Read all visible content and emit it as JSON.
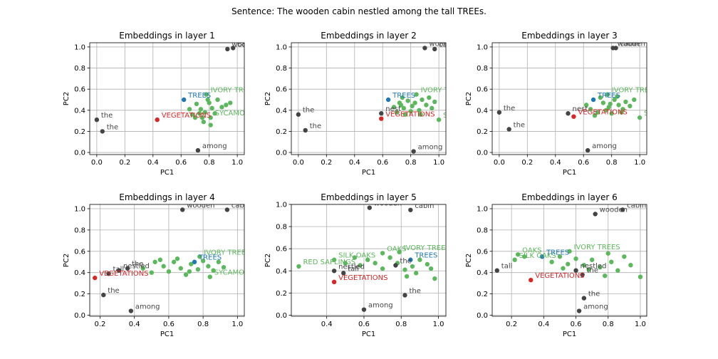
{
  "figure": {
    "suptitle": "Sentence: The wooden cabin nestled among the tall TREEs."
  },
  "colors": {
    "context": "#444444",
    "target": "#1f77b4",
    "hypernym": "#d62728",
    "other": "#5cb85c"
  },
  "chart_data": [
    {
      "type": "scatter",
      "title": "Embeddings in layer 1",
      "xlabel": "PC1",
      "ylabel": "PC2",
      "xlim": [
        -0.05,
        1.05
      ],
      "ylim": [
        -0.02,
        1.04
      ],
      "xticks": [
        "0.0",
        "0.2",
        "0.4",
        "0.6",
        "0.8",
        "1.0"
      ],
      "yticks": [
        "0.0",
        "0.2",
        "0.4",
        "0.6",
        "0.8",
        "1.0"
      ],
      "grid": true,
      "context_points": [
        {
          "label": "wooden",
          "x": 0.93,
          "y": 0.98
        },
        {
          "label": "cabin",
          "x": 0.97,
          "y": 0.99
        },
        {
          "label": "the",
          "x": 0.0,
          "y": 0.31
        },
        {
          "label": "the",
          "x": 0.04,
          "y": 0.2
        },
        {
          "label": "among",
          "x": 0.72,
          "y": 0.02
        }
      ],
      "target_points": [
        {
          "label": "TREES",
          "x": 0.62,
          "y": 0.5
        }
      ],
      "hypernym_points": [
        {
          "label": "VEGETATIONS",
          "x": 0.43,
          "y": 0.31
        }
      ],
      "other_points": [
        {
          "label": "IVORY TREES",
          "x": 0.78,
          "y": 0.55
        },
        {
          "label": "SYCAMORES",
          "x": 0.81,
          "y": 0.33
        },
        {
          "label": "",
          "x": 0.71,
          "y": 0.46
        },
        {
          "label": "",
          "x": 0.74,
          "y": 0.41
        },
        {
          "label": "",
          "x": 0.75,
          "y": 0.33
        },
        {
          "label": "",
          "x": 0.8,
          "y": 0.47
        },
        {
          "label": "",
          "x": 0.82,
          "y": 0.42
        },
        {
          "label": "",
          "x": 0.68,
          "y": 0.36
        },
        {
          "label": "",
          "x": 0.86,
          "y": 0.5
        },
        {
          "label": "",
          "x": 0.89,
          "y": 0.43
        },
        {
          "label": "",
          "x": 0.77,
          "y": 0.38
        },
        {
          "label": "",
          "x": 0.7,
          "y": 0.33
        },
        {
          "label": "",
          "x": 0.81,
          "y": 0.26
        },
        {
          "label": "",
          "x": 0.92,
          "y": 0.45
        },
        {
          "label": "",
          "x": 0.66,
          "y": 0.41
        },
        {
          "label": "",
          "x": 0.73,
          "y": 0.37
        },
        {
          "label": "",
          "x": 0.84,
          "y": 0.37
        },
        {
          "label": "",
          "x": 0.95,
          "y": 0.47
        },
        {
          "label": "",
          "x": 0.79,
          "y": 0.5
        },
        {
          "label": "",
          "x": 0.76,
          "y": 0.29
        }
      ]
    },
    {
      "type": "scatter",
      "title": "Embeddings in layer 2",
      "xlabel": "PC1",
      "ylabel": "PC2",
      "xlim": [
        -0.05,
        1.05
      ],
      "ylim": [
        -0.02,
        1.04
      ],
      "xticks": [
        "0.0",
        "0.2",
        "0.4",
        "0.6",
        "0.8",
        "1.0"
      ],
      "yticks": [
        "0.0",
        "0.2",
        "0.4",
        "0.6",
        "0.8",
        "1.0"
      ],
      "grid": true,
      "context_points": [
        {
          "label": "wooden",
          "x": 0.9,
          "y": 0.99
        },
        {
          "label": "cabin",
          "x": 0.97,
          "y": 0.98
        },
        {
          "label": "the",
          "x": 0.0,
          "y": 0.36
        },
        {
          "label": "the",
          "x": 0.05,
          "y": 0.21
        },
        {
          "label": "nest",
          "x": 0.59,
          "y": 0.37
        },
        {
          "label": "among",
          "x": 0.82,
          "y": 0.01
        }
      ],
      "target_points": [
        {
          "label": "TREES",
          "x": 0.64,
          "y": 0.5
        }
      ],
      "hypernym_points": [
        {
          "label": "VEGETATIONS",
          "x": 0.59,
          "y": 0.32
        }
      ],
      "other_points": [
        {
          "label": "IVORY TREES",
          "x": 0.84,
          "y": 0.55
        },
        {
          "label": "SYCAMORES",
          "x": 1.0,
          "y": 0.31
        },
        {
          "label": "",
          "x": 0.72,
          "y": 0.47
        },
        {
          "label": "",
          "x": 0.75,
          "y": 0.42
        },
        {
          "label": "",
          "x": 0.7,
          "y": 0.38
        },
        {
          "label": "",
          "x": 0.78,
          "y": 0.49
        },
        {
          "label": "",
          "x": 0.81,
          "y": 0.44
        },
        {
          "label": "",
          "x": 0.86,
          "y": 0.4
        },
        {
          "label": "",
          "x": 0.88,
          "y": 0.5
        },
        {
          "label": "",
          "x": 0.91,
          "y": 0.45
        },
        {
          "label": "",
          "x": 0.76,
          "y": 0.36
        },
        {
          "label": "",
          "x": 0.93,
          "y": 0.52
        },
        {
          "label": "",
          "x": 0.68,
          "y": 0.43
        },
        {
          "label": "",
          "x": 0.83,
          "y": 0.47
        },
        {
          "label": "",
          "x": 0.95,
          "y": 0.42
        },
        {
          "label": "",
          "x": 0.8,
          "y": 0.39
        },
        {
          "label": "",
          "x": 0.74,
          "y": 0.52
        },
        {
          "label": "",
          "x": 0.87,
          "y": 0.36
        },
        {
          "label": "",
          "x": 0.97,
          "y": 0.48
        },
        {
          "label": "",
          "x": 0.73,
          "y": 0.45
        }
      ]
    },
    {
      "type": "scatter",
      "title": "Embeddings in layer 3",
      "xlabel": "PC1",
      "ylabel": "PC2",
      "xlim": [
        -0.05,
        1.05
      ],
      "ylim": [
        -0.02,
        1.04
      ],
      "xticks": [
        "0.0",
        "0.2",
        "0.4",
        "0.6",
        "0.8",
        "1.0"
      ],
      "yticks": [
        "0.0",
        "0.2",
        "0.4",
        "0.6",
        "0.8",
        "1.0"
      ],
      "grid": true,
      "context_points": [
        {
          "label": "wooden",
          "x": 0.81,
          "y": 0.99
        },
        {
          "label": "cabin",
          "x": 0.83,
          "y": 0.99
        },
        {
          "label": "the",
          "x": 0.0,
          "y": 0.38
        },
        {
          "label": "the",
          "x": 0.07,
          "y": 0.22
        },
        {
          "label": "nest",
          "x": 0.49,
          "y": 0.37
        },
        {
          "label": "among",
          "x": 0.63,
          "y": 0.02
        }
      ],
      "target_points": [
        {
          "label": "TREES",
          "x": 0.67,
          "y": 0.5
        }
      ],
      "hypernym_points": [
        {
          "label": "VEGETATIONS",
          "x": 0.53,
          "y": 0.34
        }
      ],
      "other_points": [
        {
          "label": "IVORY TREES",
          "x": 0.77,
          "y": 0.55
        },
        {
          "label": "SYCAMORES",
          "x": 1.0,
          "y": 0.33
        },
        {
          "label": "",
          "x": 0.62,
          "y": 0.45
        },
        {
          "label": "",
          "x": 0.65,
          "y": 0.41
        },
        {
          "label": "",
          "x": 0.7,
          "y": 0.38
        },
        {
          "label": "",
          "x": 0.74,
          "y": 0.47
        },
        {
          "label": "",
          "x": 0.78,
          "y": 0.43
        },
        {
          "label": "",
          "x": 0.82,
          "y": 0.5
        },
        {
          "label": "",
          "x": 0.85,
          "y": 0.45
        },
        {
          "label": "",
          "x": 0.8,
          "y": 0.37
        },
        {
          "label": "",
          "x": 0.88,
          "y": 0.41
        },
        {
          "label": "",
          "x": 0.72,
          "y": 0.52
        },
        {
          "label": "",
          "x": 0.9,
          "y": 0.48
        },
        {
          "label": "",
          "x": 0.68,
          "y": 0.35
        },
        {
          "label": "",
          "x": 0.76,
          "y": 0.4
        },
        {
          "label": "",
          "x": 0.93,
          "y": 0.44
        },
        {
          "label": "",
          "x": 0.84,
          "y": 0.53
        },
        {
          "label": "",
          "x": 0.96,
          "y": 0.5
        },
        {
          "label": "",
          "x": 0.79,
          "y": 0.46
        },
        {
          "label": "",
          "x": 0.87,
          "y": 0.38
        }
      ]
    },
    {
      "type": "scatter",
      "title": "Embeddings in layer 4",
      "xlabel": "PC1",
      "ylabel": "PC2",
      "xlim": [
        0.14,
        1.04
      ],
      "ylim": [
        -0.01,
        1.04
      ],
      "xticks": [
        "0.2",
        "0.4",
        "0.6",
        "0.8",
        "1.0"
      ],
      "yticks": [
        "0.0",
        "0.2",
        "0.4",
        "0.6",
        "0.8",
        "1.0"
      ],
      "grid": true,
      "context_points": [
        {
          "label": "wooden",
          "x": 0.68,
          "y": 0.99
        },
        {
          "label": "cabin",
          "x": 0.94,
          "y": 0.99
        },
        {
          "label": "the",
          "x": 0.36,
          "y": 0.44
        },
        {
          "label": "tall",
          "x": 0.25,
          "y": 0.39
        },
        {
          "label": "nestled",
          "x": 0.31,
          "y": 0.42
        },
        {
          "label": "the",
          "x": 0.22,
          "y": 0.19
        },
        {
          "label": "among",
          "x": 0.38,
          "y": 0.04
        }
      ],
      "target_points": [
        {
          "label": "TREES",
          "x": 0.75,
          "y": 0.5
        }
      ],
      "hypernym_points": [
        {
          "label": "VEGETATIONS",
          "x": 0.17,
          "y": 0.35
        }
      ],
      "other_points": [
        {
          "label": "IVORY TREES",
          "x": 0.78,
          "y": 0.55
        },
        {
          "label": "SYCAMORES",
          "x": 0.84,
          "y": 0.36
        },
        {
          "label": "",
          "x": 0.45,
          "y": 0.44
        },
        {
          "label": "",
          "x": 0.5,
          "y": 0.4
        },
        {
          "label": "",
          "x": 0.52,
          "y": 0.5
        },
        {
          "label": "",
          "x": 0.57,
          "y": 0.46
        },
        {
          "label": "",
          "x": 0.6,
          "y": 0.41
        },
        {
          "label": "",
          "x": 0.63,
          "y": 0.5
        },
        {
          "label": "",
          "x": 0.67,
          "y": 0.44
        },
        {
          "label": "",
          "x": 0.7,
          "y": 0.38
        },
        {
          "label": "",
          "x": 0.73,
          "y": 0.48
        },
        {
          "label": "",
          "x": 0.77,
          "y": 0.43
        },
        {
          "label": "",
          "x": 0.8,
          "y": 0.51
        },
        {
          "label": "",
          "x": 0.83,
          "y": 0.46
        },
        {
          "label": "",
          "x": 0.86,
          "y": 0.42
        },
        {
          "label": "",
          "x": 0.89,
          "y": 0.5
        },
        {
          "label": "",
          "x": 0.92,
          "y": 0.45
        },
        {
          "label": "",
          "x": 0.55,
          "y": 0.52
        },
        {
          "label": "",
          "x": 0.65,
          "y": 0.53
        },
        {
          "label": "",
          "x": 0.72,
          "y": 0.41
        }
      ]
    },
    {
      "type": "scatter",
      "title": "Embeddings in layer 5",
      "xlabel": "PC1",
      "ylabel": "PC2",
      "xlim": [
        0.21,
        1.04
      ],
      "ylim": [
        -0.01,
        1.0
      ],
      "xticks": [
        "0.4",
        "0.6",
        "0.8",
        "1.0"
      ],
      "yticks": [
        "0.0",
        "0.2",
        "0.4",
        "0.6",
        "0.8",
        "1.0"
      ],
      "grid": true,
      "context_points": [
        {
          "label": "wooden",
          "x": 0.63,
          "y": 0.97
        },
        {
          "label": "cabin",
          "x": 0.85,
          "y": 0.95
        },
        {
          "label": "nestled",
          "x": 0.44,
          "y": 0.4
        },
        {
          "label": "tall",
          "x": 0.49,
          "y": 0.38
        },
        {
          "label": "the",
          "x": 0.77,
          "y": 0.45
        },
        {
          "label": "the",
          "x": 0.82,
          "y": 0.18
        },
        {
          "label": "among",
          "x": 0.6,
          "y": 0.05
        }
      ],
      "target_points": [
        {
          "label": "TREES",
          "x": 0.85,
          "y": 0.5
        }
      ],
      "hypernym_points": [
        {
          "label": "VEGETATIONS",
          "x": 0.44,
          "y": 0.3
        }
      ],
      "other_points": [
        {
          "label": "RED SAPLINGS",
          "x": 0.25,
          "y": 0.44
        },
        {
          "label": "SILK OAKS",
          "x": 0.44,
          "y": 0.5
        },
        {
          "label": "OAKS",
          "x": 0.7,
          "y": 0.56
        },
        {
          "label": "IVORY TREES",
          "x": 0.79,
          "y": 0.57
        },
        {
          "label": "",
          "x": 0.5,
          "y": 0.47
        },
        {
          "label": "",
          "x": 0.55,
          "y": 0.52
        },
        {
          "label": "",
          "x": 0.58,
          "y": 0.45
        },
        {
          "label": "",
          "x": 0.62,
          "y": 0.5
        },
        {
          "label": "",
          "x": 0.66,
          "y": 0.47
        },
        {
          "label": "",
          "x": 0.7,
          "y": 0.42
        },
        {
          "label": "",
          "x": 0.74,
          "y": 0.52
        },
        {
          "label": "",
          "x": 0.78,
          "y": 0.47
        },
        {
          "label": "",
          "x": 0.82,
          "y": 0.41
        },
        {
          "label": "",
          "x": 0.86,
          "y": 0.44
        },
        {
          "label": "",
          "x": 0.9,
          "y": 0.5
        },
        {
          "label": "",
          "x": 0.94,
          "y": 0.46
        },
        {
          "label": "",
          "x": 0.98,
          "y": 0.33
        },
        {
          "label": "",
          "x": 0.83,
          "y": 0.35
        },
        {
          "label": "",
          "x": 0.88,
          "y": 0.38
        },
        {
          "label": "",
          "x": 0.96,
          "y": 0.42
        }
      ]
    },
    {
      "type": "scatter",
      "title": "Embeddings in layer 6",
      "xlabel": "PC1",
      "ylabel": "PC2",
      "xlim": [
        0.08,
        1.04
      ],
      "ylim": [
        -0.01,
        1.04
      ],
      "xticks": [
        "0.2",
        "0.4",
        "0.6",
        "0.8",
        "1.0"
      ],
      "yticks": [
        "0.0",
        "0.2",
        "0.4",
        "0.6",
        "0.8",
        "1.0"
      ],
      "grid": true,
      "context_points": [
        {
          "label": "cabin",
          "x": 0.89,
          "y": 0.99
        },
        {
          "label": "wooden",
          "x": 0.72,
          "y": 0.95
        },
        {
          "label": "tall",
          "x": 0.11,
          "y": 0.42
        },
        {
          "label": "nestled",
          "x": 0.6,
          "y": 0.42
        },
        {
          "label": "the",
          "x": 0.64,
          "y": 0.38
        },
        {
          "label": "the",
          "x": 0.65,
          "y": 0.16
        },
        {
          "label": "among",
          "x": 0.62,
          "y": 0.04
        }
      ],
      "target_points": [
        {
          "label": "TREES",
          "x": 0.39,
          "y": 0.55
        }
      ],
      "hypernym_points": [
        {
          "label": "VEGETATIONS",
          "x": 0.32,
          "y": 0.33
        }
      ],
      "other_points": [
        {
          "label": "OAKS",
          "x": 0.24,
          "y": 0.57
        },
        {
          "label": "SILK OAKS",
          "x": 0.22,
          "y": 0.52
        },
        {
          "label": "IVORY TREES",
          "x": 0.56,
          "y": 0.6
        },
        {
          "label": "",
          "x": 0.28,
          "y": 0.55
        },
        {
          "label": "",
          "x": 0.45,
          "y": 0.5
        },
        {
          "label": "",
          "x": 0.5,
          "y": 0.55
        },
        {
          "label": "",
          "x": 0.55,
          "y": 0.48
        },
        {
          "label": "",
          "x": 0.6,
          "y": 0.53
        },
        {
          "label": "",
          "x": 0.65,
          "y": 0.47
        },
        {
          "label": "",
          "x": 0.7,
          "y": 0.52
        },
        {
          "label": "",
          "x": 0.75,
          "y": 0.45
        },
        {
          "label": "",
          "x": 0.78,
          "y": 0.37
        },
        {
          "label": "",
          "x": 0.82,
          "y": 0.5
        },
        {
          "label": "",
          "x": 0.86,
          "y": 0.42
        },
        {
          "label": "",
          "x": 0.9,
          "y": 0.55
        },
        {
          "label": "",
          "x": 0.94,
          "y": 0.47
        },
        {
          "label": "",
          "x": 1.0,
          "y": 0.36
        },
        {
          "label": "",
          "x": 0.68,
          "y": 0.43
        },
        {
          "label": "",
          "x": 0.52,
          "y": 0.44
        },
        {
          "label": "",
          "x": 0.8,
          "y": 0.58
        }
      ]
    }
  ]
}
